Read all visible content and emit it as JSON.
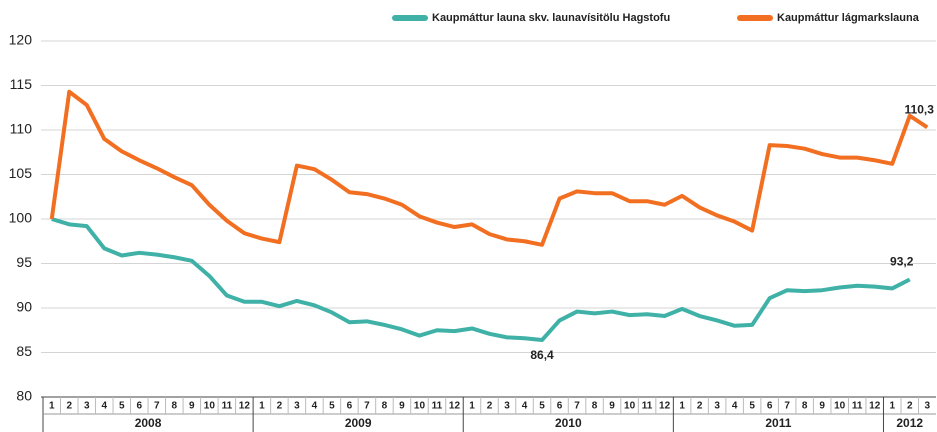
{
  "chart_data": {
    "type": "line",
    "categories": [
      "1",
      "2",
      "3",
      "4",
      "5",
      "6",
      "7",
      "8",
      "9",
      "10",
      "11",
      "12",
      "1",
      "2",
      "3",
      "4",
      "5",
      "6",
      "7",
      "8",
      "9",
      "10",
      "11",
      "12",
      "1",
      "2",
      "3",
      "4",
      "5",
      "6",
      "7",
      "8",
      "9",
      "10",
      "11",
      "12",
      "1",
      "2",
      "3",
      "4",
      "5",
      "6",
      "7",
      "8",
      "9",
      "10",
      "11",
      "12",
      "1",
      "2",
      "3"
    ],
    "groups": [
      "2008",
      "2009",
      "2010",
      "2011",
      "2012"
    ],
    "series": [
      {
        "name": "Kaupmáttur launa skv. launavísitölu Hagstofu",
        "color": "#3fb1a7",
        "values": [
          100,
          99.4,
          99.2,
          96.7,
          95.9,
          96.2,
          96.0,
          95.7,
          95.3,
          93.6,
          91.4,
          90.7,
          90.7,
          90.2,
          90.8,
          90.3,
          89.5,
          88.4,
          88.5,
          88.1,
          87.6,
          86.9,
          87.5,
          87.4,
          87.7,
          87.1,
          86.7,
          86.6,
          86.4,
          88.6,
          89.6,
          89.4,
          89.6,
          89.2,
          89.3,
          89.1,
          89.9,
          89.1,
          88.6,
          88.0,
          88.1,
          91.1,
          92.0,
          91.9,
          92.0,
          92.3,
          92.5,
          92.4,
          92.2,
          93.2,
          null
        ],
        "value_labels": [
          null,
          null,
          null,
          null,
          null,
          null,
          null,
          null,
          null,
          null,
          null,
          null,
          null,
          null,
          null,
          null,
          null,
          null,
          null,
          null,
          null,
          null,
          null,
          null,
          null,
          null,
          null,
          null,
          "86,4",
          null,
          null,
          null,
          null,
          null,
          null,
          null,
          null,
          null,
          null,
          null,
          null,
          null,
          null,
          null,
          null,
          null,
          null,
          null,
          null,
          "93,2",
          null
        ]
      },
      {
        "name": "Kaupmáttur lágmarkslauna",
        "color": "#f26f22",
        "values": [
          100,
          114.3,
          112.8,
          109.0,
          107.6,
          106.6,
          105.7,
          104.7,
          103.8,
          101.6,
          99.8,
          98.4,
          97.8,
          97.4,
          106.0,
          105.6,
          104.4,
          103.0,
          102.8,
          102.3,
          101.6,
          100.3,
          99.6,
          99.1,
          99.4,
          98.3,
          97.7,
          97.5,
          97.1,
          102.3,
          103.1,
          102.9,
          102.9,
          102.0,
          102.0,
          101.6,
          102.6,
          101.3,
          100.4,
          99.7,
          98.7,
          108.3,
          108.2,
          107.9,
          107.3,
          106.9,
          106.9,
          106.6,
          106.2,
          111.6,
          110.3
        ],
        "value_labels": [
          null,
          null,
          null,
          null,
          null,
          null,
          null,
          null,
          null,
          null,
          null,
          null,
          null,
          null,
          null,
          null,
          null,
          null,
          null,
          null,
          null,
          null,
          null,
          null,
          null,
          null,
          null,
          null,
          null,
          null,
          null,
          null,
          null,
          null,
          null,
          null,
          null,
          null,
          null,
          null,
          null,
          null,
          null,
          null,
          null,
          null,
          null,
          null,
          null,
          null,
          "110,3"
        ]
      }
    ],
    "ylim": [
      80,
      120
    ],
    "yticks": [
      80,
      85,
      90,
      95,
      100,
      105,
      110,
      115,
      120
    ],
    "grid": true
  }
}
